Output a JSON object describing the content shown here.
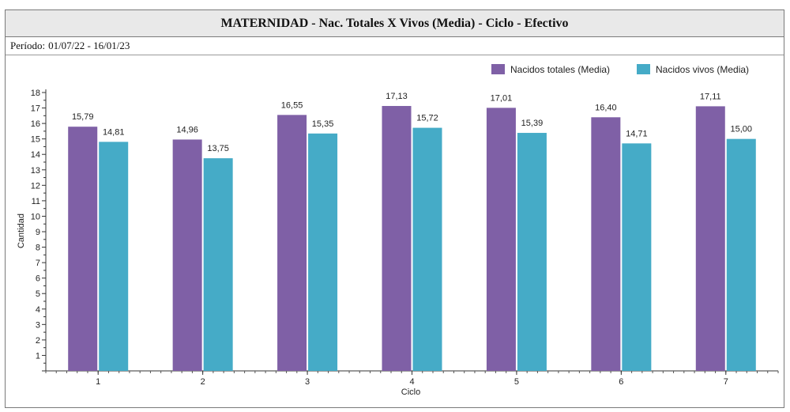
{
  "header": {
    "title": "MATERNIDAD - Nac. Totales X Vivos (Media) - Ciclo - Efectivo",
    "period_label": "Período:",
    "period_value": "01/07/22 - 16/01/23"
  },
  "chart_data": {
    "type": "bar",
    "title": "MATERNIDAD - Nac. Totales X Vivos (Media) - Ciclo - Efectivo",
    "xlabel": "Ciclo",
    "ylabel": "Cantidad",
    "categories": [
      "1",
      "2",
      "3",
      "4",
      "5",
      "6",
      "7"
    ],
    "series": [
      {
        "name": "Nacidos totales (Media)",
        "color": "#7f60a6",
        "values": [
          15.79,
          14.96,
          16.55,
          17.13,
          17.01,
          16.4,
          17.11
        ],
        "labels": [
          "15,79",
          "14,96",
          "16,55",
          "17,13",
          "17,01",
          "16,40",
          "17,11"
        ]
      },
      {
        "name": "Nacidos vivos (Media)",
        "color": "#45abc7",
        "values": [
          14.81,
          13.75,
          15.35,
          15.72,
          15.39,
          14.71,
          15.0
        ],
        "labels": [
          "14,81",
          "13,75",
          "15,35",
          "15,72",
          "15,39",
          "14,71",
          "15,00"
        ]
      }
    ],
    "ylim": [
      0,
      18
    ],
    "yticks": [
      "1",
      "2",
      "3",
      "4",
      "5",
      "6",
      "7",
      "8",
      "9",
      "10",
      "11",
      "12",
      "13",
      "14",
      "15",
      "16",
      "17",
      "18"
    ],
    "grid": false,
    "legend_position": "top-right"
  }
}
